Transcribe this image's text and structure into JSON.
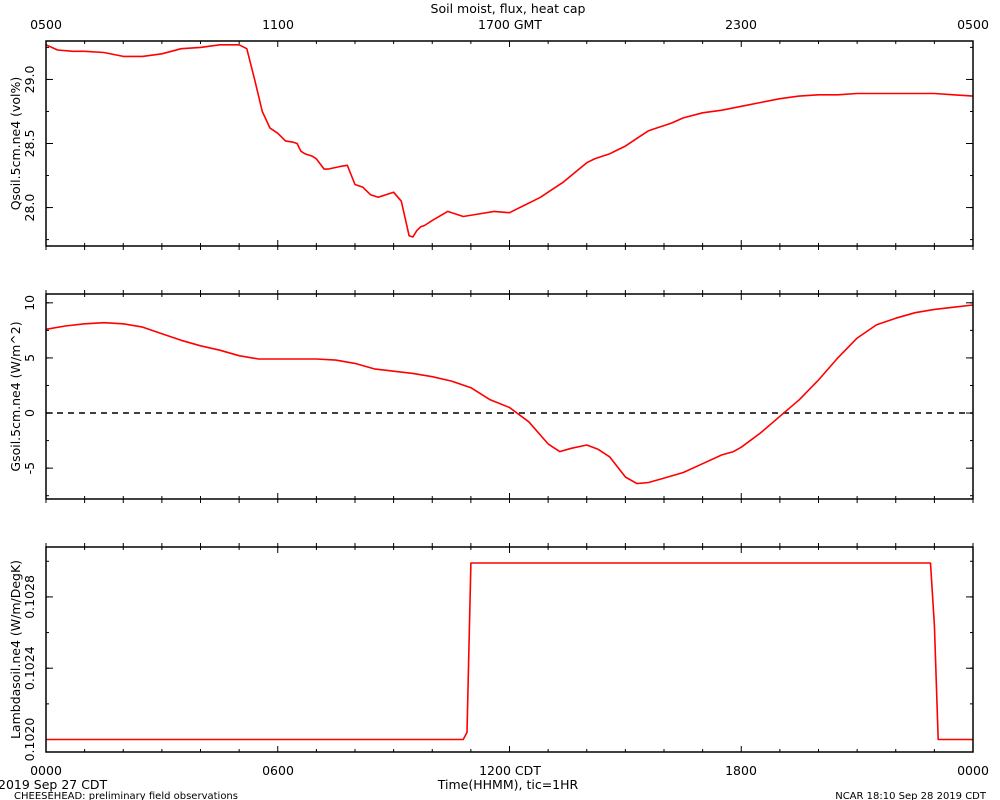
{
  "title": "Soil moist, flux, heat cap",
  "top_axis_labels": [
    "0500",
    "1100",
    "1700 GMT",
    "2300",
    "0500"
  ],
  "bottom_axis_labels": [
    "0000",
    "0600",
    "1200 CDT",
    "1800",
    "0000"
  ],
  "xlabel": "Time(HHMM), tic=1HR",
  "footer": {
    "date": "2019 Sep 27 CDT",
    "project": "CHEESEHEAD: preliminary field observations",
    "credit": "NCAR 18:10 Sep 28 2019 CDT"
  },
  "colors": {
    "series": "#ff0000",
    "axes": "#000000",
    "zero_line": "#000000"
  },
  "chart_data": [
    {
      "type": "line",
      "ylabel": "Qsoil.5cm.ne4 (vol%)",
      "xlim": [
        0,
        24
      ],
      "ylim": [
        27.7,
        29.3
      ],
      "yticks": [
        28.0,
        28.5,
        29.0
      ],
      "ytick_labels": [
        "28.0",
        "28.5",
        "29.0"
      ],
      "series": [
        {
          "x": [
            0,
            0.3,
            0.7,
            1,
            1.5,
            2,
            2.5,
            3,
            3.5,
            4,
            4.5,
            5,
            5.2,
            5.4,
            5.6,
            5.8,
            6.0,
            6.2,
            6.4,
            6.5,
            6.6,
            6.7,
            6.9,
            7.0,
            7.2,
            7.3,
            7.6,
            7.8,
            8.0,
            8.2,
            8.4,
            8.6,
            8.8,
            9.0,
            9.2,
            9.4,
            9.5,
            9.6,
            9.7,
            9.8,
            10.0,
            10.4,
            10.8,
            11.2,
            11.6,
            12.0,
            12.2,
            12.4,
            12.6,
            12.8,
            13.0,
            13.2,
            13.4,
            13.6,
            13.8,
            14.0,
            14.2,
            14.4,
            14.6,
            14.8,
            15.0,
            15.2,
            15.4,
            15.6,
            15.8,
            16.0,
            16.2,
            16.5,
            17.0,
            17.5,
            18.0,
            18.5,
            19.0,
            19.5,
            20.0,
            20.5,
            21.0,
            21.5,
            22.0,
            22.5,
            23.0,
            23.5,
            24.0
          ],
          "values": [
            29.27,
            29.23,
            29.22,
            29.22,
            29.21,
            29.18,
            29.18,
            29.2,
            29.24,
            29.25,
            29.27,
            29.27,
            29.24,
            29.0,
            28.75,
            28.62,
            28.58,
            28.52,
            28.51,
            28.5,
            28.44,
            28.42,
            28.4,
            28.38,
            28.3,
            28.3,
            28.32,
            28.33,
            28.18,
            28.16,
            28.1,
            28.08,
            28.1,
            28.12,
            28.05,
            27.78,
            27.77,
            27.82,
            27.85,
            27.86,
            27.9,
            27.97,
            27.93,
            27.95,
            27.97,
            27.96,
            27.99,
            28.02,
            28.05,
            28.08,
            28.12,
            28.16,
            28.2,
            28.25,
            28.3,
            28.35,
            28.38,
            28.4,
            28.42,
            28.45,
            28.48,
            28.52,
            28.56,
            28.6,
            28.62,
            28.64,
            28.66,
            28.7,
            28.74,
            28.76,
            28.79,
            28.82,
            28.85,
            28.87,
            28.88,
            28.88,
            28.89,
            28.89,
            28.89,
            28.89,
            28.89,
            28.88,
            28.87
          ]
        }
      ]
    },
    {
      "type": "line",
      "ylabel": "Gsoil.5cm.ne4 (W/m^2)",
      "xlim": [
        0,
        24
      ],
      "ylim": [
        -7.8,
        10.8
      ],
      "yticks": [
        -5,
        0,
        5,
        10
      ],
      "ytick_labels": [
        "-5",
        "0",
        "5",
        "10"
      ],
      "reference_line": 0,
      "series": [
        {
          "x": [
            0,
            0.5,
            1,
            1.5,
            2,
            2.5,
            3,
            3.5,
            4,
            4.5,
            5,
            5.5,
            6,
            6.5,
            7,
            7.5,
            8,
            8.5,
            9,
            9.5,
            10,
            10.5,
            11,
            11.5,
            12,
            12.5,
            13,
            13.3,
            13.6,
            14,
            14.3,
            14.6,
            15,
            15.3,
            15.6,
            16,
            16.5,
            17,
            17.5,
            17.8,
            18,
            18.5,
            19,
            19.5,
            20,
            20.5,
            21,
            21.5,
            22,
            22.5,
            23,
            23.5,
            24
          ],
          "values": [
            7.6,
            7.9,
            8.1,
            8.2,
            8.1,
            7.8,
            7.2,
            6.6,
            6.1,
            5.7,
            5.2,
            4.9,
            4.9,
            4.9,
            4.9,
            4.8,
            4.5,
            4.0,
            3.8,
            3.6,
            3.3,
            2.9,
            2.3,
            1.2,
            0.5,
            -0.8,
            -2.8,
            -3.5,
            -3.2,
            -2.9,
            -3.3,
            -4.0,
            -5.8,
            -6.4,
            -6.3,
            -5.9,
            -5.4,
            -4.6,
            -3.8,
            -3.5,
            -3.1,
            -1.8,
            -0.3,
            1.2,
            3.0,
            5.0,
            6.8,
            8.0,
            8.6,
            9.1,
            9.4,
            9.6,
            9.8
          ]
        }
      ]
    },
    {
      "type": "line",
      "ylabel": "Lambdasoil.ne4 (W/m/DegK)",
      "xlim": [
        0,
        24
      ],
      "ylim": [
        0.10193,
        0.10308
      ],
      "yticks": [
        0.102,
        0.1024,
        0.1028
      ],
      "ytick_labels": [
        "0.1020",
        "0.1024",
        "0.1028"
      ],
      "series": [
        {
          "x": [
            0,
            10.8,
            10.9,
            11.0,
            22.9,
            23.0,
            23.1,
            24.0
          ],
          "values": [
            0.102,
            0.102,
            0.10204,
            0.10299,
            0.10299,
            0.10264,
            0.102,
            0.102
          ]
        }
      ]
    }
  ]
}
